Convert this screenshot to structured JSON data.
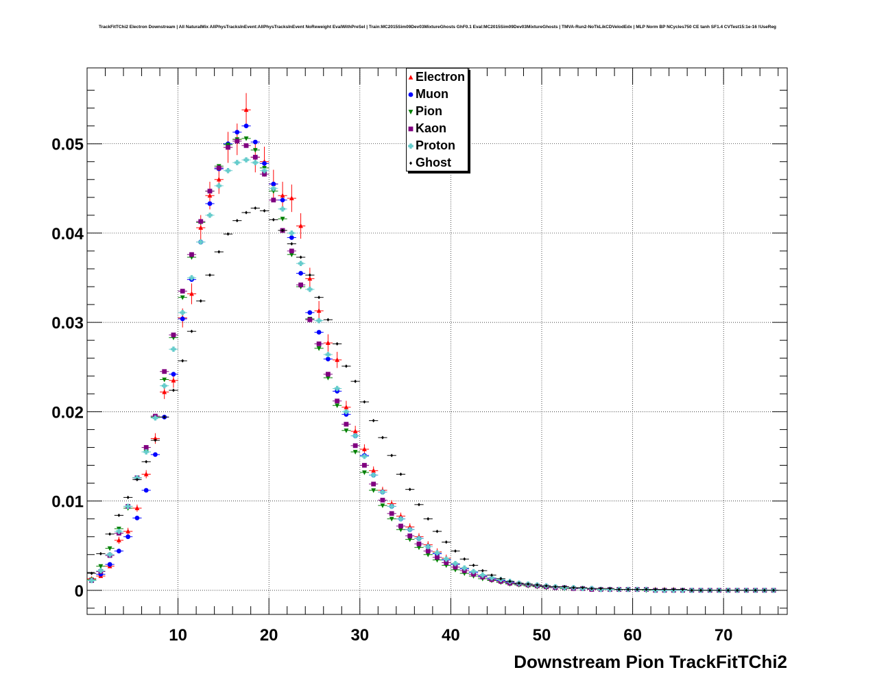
{
  "chart_data": {
    "type": "scatter",
    "title": "TrackFitTChi2 Electron Downstream | All NaturalMix AllPhysTracksInEvent:AllPhysTracksInEvent NoReweight EvalWithPreSel | Train:MC2015Sim09Dev03MixtureGhosts GhF0.1 Eval:MC2015Sim09Dev03MixtureGhosts | TMVA-Run2-NoTkLikCDVelodEdx | MLP Norm BP NCycles750 CE tanh SF1.4 CVTest15:1e-16 !UseReg",
    "xlabel": "Downstream Pion TrackFitTChi2",
    "ylabel": "",
    "xlim": [
      0,
      77
    ],
    "ylim": [
      -0.0027,
      0.0585
    ],
    "xticks": [
      "10",
      "20",
      "30",
      "40",
      "50",
      "60",
      "70"
    ],
    "yticks": [
      "0",
      "0.01",
      "0.02",
      "0.03",
      "0.04",
      "0.05"
    ],
    "grid": true,
    "legend_position": "top-center",
    "x": [
      0.5,
      1.5,
      2.5,
      3.5,
      4.5,
      5.5,
      6.5,
      7.5,
      8.5,
      9.5,
      10.5,
      11.5,
      12.5,
      13.5,
      14.5,
      15.5,
      16.5,
      17.5,
      18.5,
      19.5,
      20.5,
      21.5,
      22.5,
      23.5,
      24.5,
      25.5,
      26.5,
      27.5,
      28.5,
      29.5,
      30.5,
      31.5,
      32.5,
      33.5,
      34.5,
      35.5,
      36.5,
      37.5,
      38.5,
      39.5,
      40.5,
      41.5,
      42.5,
      43.5,
      44.5,
      45.5,
      46.5,
      47.5,
      48.5,
      49.5,
      50.5,
      51.5,
      52.5,
      53.5,
      54.5,
      55.5,
      56.5,
      57.5,
      58.5,
      59.5,
      60.5,
      61.5,
      62.5,
      63.5,
      64.5,
      65.5,
      66.5,
      67.5,
      68.5,
      69.5,
      70.5,
      71.5,
      72.5,
      73.5,
      74.5,
      75.5
    ],
    "series": [
      {
        "name": "Electron",
        "color": "#ff0000",
        "marker": "triangle-up",
        "values": [
          0.0013,
          0.0016,
          0.0027,
          0.0056,
          0.0066,
          0.0092,
          0.013,
          0.017,
          0.0222,
          0.0235,
          0.0305,
          0.0332,
          0.0406,
          0.0442,
          0.046,
          0.0496,
          0.0505,
          0.0538,
          0.0485,
          0.048,
          0.0455,
          0.0442,
          0.0439,
          0.0408,
          0.0349,
          0.0313,
          0.0277,
          0.0258,
          0.0205,
          0.0178,
          0.0158,
          0.0134,
          0.0112,
          0.0097,
          0.0083,
          0.0071,
          0.006,
          0.0051,
          0.0043,
          0.0036,
          0.003,
          0.0025,
          0.0021,
          0.0017,
          0.0014,
          0.0011,
          0.0009,
          0.0008,
          0.0006,
          0.0005,
          0.0004,
          0.0003,
          0.0003,
          0.0002,
          0.0002,
          0.0002,
          0.0001,
          0.0001,
          0.0001,
          0.0001,
          0.0001,
          0.0001,
          0.0001,
          0.0001,
          0.0001,
          0.0,
          0.0,
          0.0,
          0.0,
          0.0,
          0.0,
          0.0,
          0.0,
          0.0,
          0.0,
          0.0
        ]
      },
      {
        "name": "Muon",
        "color": "#0000ff",
        "marker": "circle",
        "values": [
          0.0011,
          0.0018,
          0.0029,
          0.0044,
          0.006,
          0.0081,
          0.0112,
          0.0152,
          0.0194,
          0.0242,
          0.0304,
          0.0348,
          0.039,
          0.0433,
          0.0472,
          0.05,
          0.0513,
          0.052,
          0.0502,
          0.0478,
          0.0455,
          0.0437,
          0.0395,
          0.0355,
          0.0311,
          0.0289,
          0.0259,
          0.0223,
          0.0197,
          0.0173,
          0.0151,
          0.0129,
          0.011,
          0.0094,
          0.008,
          0.0068,
          0.0058,
          0.0049,
          0.0041,
          0.0034,
          0.0029,
          0.0024,
          0.002,
          0.0016,
          0.0013,
          0.0011,
          0.0009,
          0.0007,
          0.0006,
          0.0005,
          0.0004,
          0.0003,
          0.0003,
          0.0002,
          0.0002,
          0.0002,
          0.0001,
          0.0001,
          0.0001,
          0.0001,
          0.0001,
          0.0001,
          0.0,
          0.0,
          0.0,
          0.0,
          0.0,
          0.0,
          0.0,
          0.0,
          0.0,
          0.0,
          0.0,
          0.0,
          0.0,
          0.0
        ]
      },
      {
        "name": "Pion",
        "color": "#008000",
        "marker": "triangle-down",
        "values": [
          0.0012,
          0.0027,
          0.0047,
          0.0069,
          0.0092,
          0.0126,
          0.0155,
          0.0194,
          0.0236,
          0.0283,
          0.0328,
          0.0373,
          0.0412,
          0.0447,
          0.0475,
          0.0499,
          0.0505,
          0.0506,
          0.0493,
          0.0473,
          0.0447,
          0.0416,
          0.0376,
          0.034,
          0.0304,
          0.0271,
          0.0238,
          0.0207,
          0.0179,
          0.0155,
          0.0132,
          0.0112,
          0.0095,
          0.008,
          0.0068,
          0.0057,
          0.0048,
          0.004,
          0.0034,
          0.0028,
          0.0023,
          0.0019,
          0.0016,
          0.0013,
          0.0011,
          0.0009,
          0.0007,
          0.0006,
          0.0005,
          0.0004,
          0.0003,
          0.0003,
          0.0002,
          0.0002,
          0.0002,
          0.0001,
          0.0001,
          0.0001,
          0.0001,
          0.0001,
          0.0001,
          0.0,
          0.0,
          0.0,
          0.0,
          0.0,
          0.0,
          0.0,
          0.0,
          0.0,
          0.0,
          0.0,
          0.0,
          0.0,
          0.0,
          0.0
        ]
      },
      {
        "name": "Kaon",
        "color": "#800080",
        "marker": "square",
        "values": [
          0.0011,
          0.0021,
          0.0039,
          0.0064,
          0.0094,
          0.0126,
          0.016,
          0.0195,
          0.0245,
          0.0286,
          0.0335,
          0.0376,
          0.0413,
          0.0447,
          0.0473,
          0.0496,
          0.0503,
          0.0498,
          0.0485,
          0.0466,
          0.0437,
          0.0403,
          0.038,
          0.0342,
          0.0303,
          0.0276,
          0.0242,
          0.0212,
          0.0186,
          0.0162,
          0.014,
          0.0119,
          0.0101,
          0.0086,
          0.0072,
          0.0061,
          0.0052,
          0.0044,
          0.0037,
          0.0031,
          0.0026,
          0.0022,
          0.0018,
          0.0015,
          0.0012,
          0.001,
          0.0008,
          0.0007,
          0.0006,
          0.0005,
          0.0004,
          0.0003,
          0.0003,
          0.0002,
          0.0002,
          0.0001,
          0.0001,
          0.0001,
          0.0001,
          0.0001,
          0.0001,
          0.0001,
          0.0,
          0.0,
          0.0,
          0.0,
          0.0,
          0.0,
          0.0,
          0.0,
          0.0,
          0.0,
          0.0,
          0.0,
          0.0,
          0.0
        ]
      },
      {
        "name": "Proton",
        "color": "#66cccc",
        "marker": "cross",
        "values": [
          0.0011,
          0.0022,
          0.004,
          0.0066,
          0.0094,
          0.0126,
          0.0155,
          0.0193,
          0.0229,
          0.027,
          0.0311,
          0.035,
          0.039,
          0.042,
          0.0453,
          0.047,
          0.0479,
          0.0482,
          0.0479,
          0.047,
          0.045,
          0.0427,
          0.04,
          0.0366,
          0.0337,
          0.0302,
          0.0264,
          0.0226,
          0.02,
          0.0173,
          0.015,
          0.0129,
          0.011,
          0.0094,
          0.008,
          0.0068,
          0.0058,
          0.0049,
          0.0042,
          0.0035,
          0.003,
          0.0025,
          0.0021,
          0.0017,
          0.0014,
          0.0012,
          0.001,
          0.0008,
          0.0007,
          0.0006,
          0.0005,
          0.0004,
          0.0003,
          0.0003,
          0.0002,
          0.0002,
          0.0001,
          0.0001,
          0.0001,
          0.0001,
          0.0001,
          0.0001,
          0.0,
          0.0,
          0.0,
          0.0,
          0.0,
          0.0,
          0.0,
          0.0,
          0.0,
          0.0,
          0.0,
          0.0,
          0.0,
          0.0
        ]
      },
      {
        "name": "Ghost",
        "color": "#000000",
        "marker": "diamond",
        "values": [
          0.0019,
          0.0041,
          0.0063,
          0.0084,
          0.0104,
          0.0124,
          0.0144,
          0.0168,
          0.0194,
          0.0224,
          0.0257,
          0.029,
          0.0324,
          0.0353,
          0.0379,
          0.0399,
          0.0414,
          0.0423,
          0.0428,
          0.0425,
          0.0415,
          0.0403,
          0.0388,
          0.0373,
          0.0353,
          0.0328,
          0.0303,
          0.0276,
          0.0251,
          0.0234,
          0.0211,
          0.019,
          0.0171,
          0.0151,
          0.013,
          0.0113,
          0.0096,
          0.008,
          0.0066,
          0.0054,
          0.0044,
          0.0035,
          0.0028,
          0.0022,
          0.0017,
          0.0013,
          0.001,
          0.0008,
          0.0007,
          0.0006,
          0.0005,
          0.0004,
          0.0004,
          0.0003,
          0.0003,
          0.0002,
          0.0002,
          0.0002,
          0.0001,
          0.0001,
          0.0001,
          0.0001,
          0.0001,
          0.0001,
          0.0001,
          0.0001,
          0.0,
          0.0,
          0.0,
          0.0,
          0.0,
          0.0,
          0.0,
          0.0,
          0.0,
          0.0
        ]
      }
    ]
  }
}
